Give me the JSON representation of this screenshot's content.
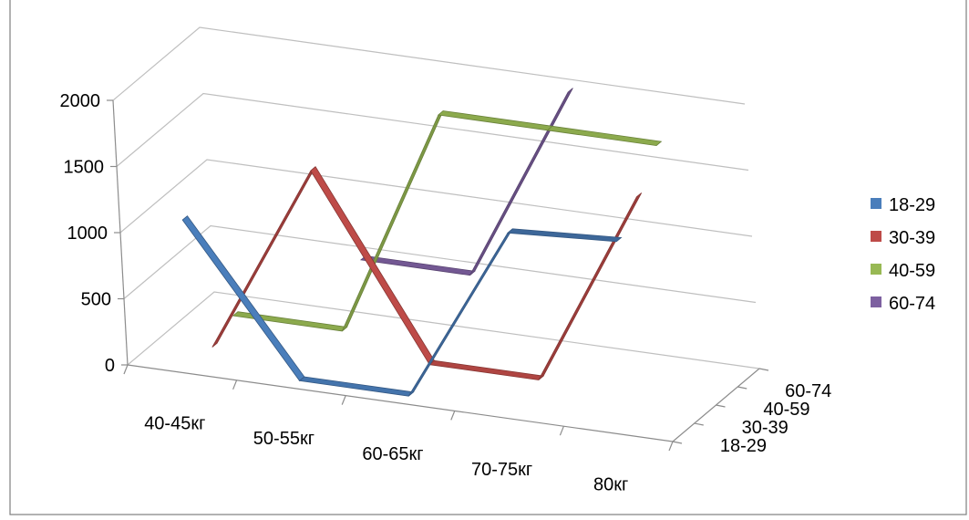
{
  "chart_data": {
    "type": "line",
    "categories": [
      "40-45кг",
      "50-55кг",
      "60-65кг",
      "70-75кг",
      "80кг"
    ],
    "ylim": [
      0,
      2000
    ],
    "yticks": [
      "0",
      "500",
      "1000",
      "1500",
      "2000"
    ],
    "depth_labels": [
      "18-29",
      "30-39",
      "40-59",
      "60-74"
    ],
    "grid": true,
    "legend_position": "right",
    "series": [
      {
        "name": "18-29",
        "color": "#4a7ebb",
        "values": [
          1100,
          0,
          0,
          1350,
          1400
        ]
      },
      {
        "name": "30-39",
        "color": "#be4b48",
        "values": [
          0,
          1450,
          100,
          100,
          1600
        ]
      },
      {
        "name": "40-59",
        "color": "#98b954",
        "values": [
          100,
          100,
          1850,
          1850,
          1850
        ]
      },
      {
        "name": "60-74",
        "color": "#7d60a0",
        "values": [
          null,
          500,
          500,
          2000,
          null
        ]
      }
    ]
  }
}
